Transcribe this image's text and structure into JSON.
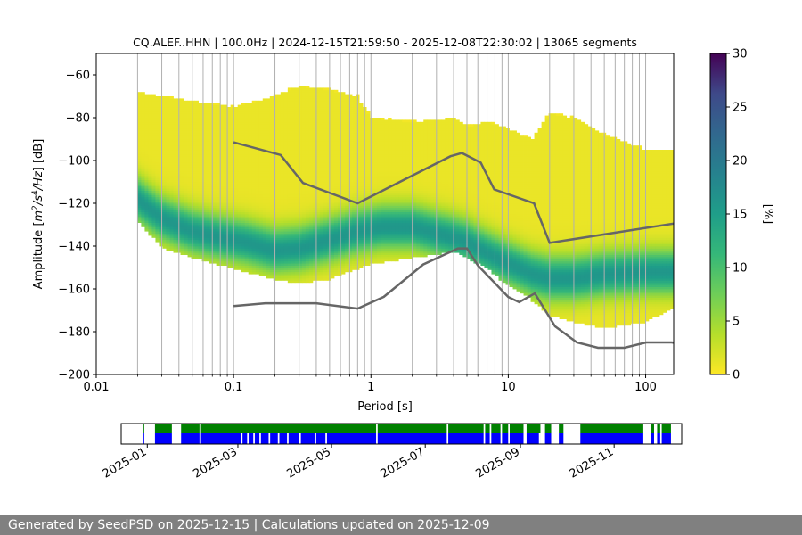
{
  "chart_data": [
    {
      "type": "heatmap",
      "title": "CQ.ALEF..HHN | 100.0Hz | 2024-12-15T21:59:50 - 2025-12-08T22:30:02 | 13065 segments",
      "xlabel": "Period [s]",
      "ylabel_parts": [
        "Amplitude [",
        "m",
        "2",
        "/s",
        "4",
        "/Hz",
        "] [dB]"
      ],
      "xscale": "log",
      "xlim": [
        0.01,
        160
      ],
      "ylim": [
        -200,
        -50
      ],
      "xticks": [
        0.01,
        0.1,
        1,
        10,
        100
      ],
      "xtick_labels": [
        "0.01",
        "0.1",
        "1",
        "10",
        "100"
      ],
      "yticks": [
        -200,
        -180,
        -160,
        -140,
        -120,
        -100,
        -80,
        -60
      ],
      "ytick_labels": [
        "−200",
        "−180",
        "−160",
        "−140",
        "−120",
        "−100",
        "−80",
        "−60"
      ],
      "grid": "vertical",
      "colorbar": {
        "label": "[%]",
        "range": [
          0,
          30
        ],
        "ticks": [
          0,
          5,
          10,
          15,
          20,
          25,
          30
        ],
        "colormap": "viridis-reversed"
      },
      "density_envelope": {
        "period": [
          0.02,
          0.03,
          0.05,
          0.1,
          0.2,
          0.3,
          0.5,
          0.8,
          1,
          2,
          4,
          5,
          7,
          10,
          15,
          20,
          30,
          50,
          100,
          160
        ],
        "upper_db": [
          -68,
          -70,
          -72,
          -75,
          -70,
          -65,
          -67,
          -70,
          -80,
          -82,
          -80,
          -84,
          -82,
          -85,
          -90,
          -78,
          -80,
          -88,
          -95,
          -95
        ],
        "lower_db": [
          -128,
          -140,
          -145,
          -150,
          -155,
          -157,
          -155,
          -150,
          -148,
          -145,
          -142,
          -145,
          -150,
          -158,
          -165,
          -172,
          -175,
          -178,
          -175,
          -168
        ]
      },
      "mode_curve": {
        "period": [
          0.02,
          0.03,
          0.05,
          0.08,
          0.12,
          0.2,
          0.3,
          0.5,
          0.8,
          1.2,
          2,
          3,
          4,
          5,
          6,
          8,
          10,
          15,
          20,
          30,
          50,
          100,
          160
        ],
        "db": [
          -118,
          -127,
          -133,
          -136,
          -138,
          -142,
          -141,
          -137,
          -133,
          -131,
          -131,
          -134,
          -136,
          -138,
          -141,
          -145,
          -148,
          -153,
          -155,
          -155,
          -153,
          -152,
          -152
        ]
      },
      "noise_models": {
        "NHNM": {
          "period": [
            0.1,
            0.22,
            0.32,
            0.8,
            3.8,
            4.6,
            6.3,
            7.9,
            15.4,
            20,
            354.8
          ],
          "db": [
            -91.5,
            -97.4,
            -110.5,
            -120,
            -98,
            -96.5,
            -101,
            -113.5,
            -120,
            -138.5,
            -126
          ]
        },
        "NLNM": {
          "period": [
            0.1,
            0.17,
            0.4,
            0.8,
            1.24,
            2.4,
            4.3,
            5,
            6,
            10,
            12,
            15.6,
            21.9,
            31.6,
            45,
            70,
            101,
            154,
            328
          ],
          "db": [
            -168,
            -166.7,
            -166.7,
            -169.2,
            -163.7,
            -148.6,
            -141.1,
            -141.1,
            -149,
            -163.8,
            -166.2,
            -162.1,
            -177.5,
            -185,
            -187.5,
            -187.5,
            -185,
            -185,
            -187.5
          ]
        }
      }
    },
    {
      "type": "bar",
      "xlabel": "",
      "tick_labels": [
        "2025-01",
        "2025-03",
        "2025-05",
        "2025-07",
        "2025-09",
        "2025-11"
      ],
      "tick_dates": [
        "2025-01-01",
        "2025-03-01",
        "2025-05-01",
        "2025-07-01",
        "2025-09-01",
        "2025-11-01"
      ],
      "xlim": [
        "2024-12-15",
        "2025-12-15"
      ],
      "colors": {
        "upper": "#008000",
        "lower": "#0000ff"
      },
      "gaps": [
        [
          "2024-12-15",
          "2024-12-29"
        ],
        [
          "2024-12-30",
          "2025-01-06"
        ],
        [
          "2025-01-17",
          "2025-01-23"
        ],
        [
          "2025-02-04",
          "2025-02-05"
        ],
        [
          "2025-05-30",
          "2025-05-31"
        ],
        [
          "2025-07-15",
          "2025-07-16"
        ],
        [
          "2025-08-08",
          "2025-08-09"
        ],
        [
          "2025-08-12",
          "2025-08-13"
        ],
        [
          "2025-08-19",
          "2025-08-20"
        ],
        [
          "2025-08-24",
          "2025-08-25"
        ],
        [
          "2025-09-03",
          "2025-09-05"
        ],
        [
          "2025-09-14",
          "2025-09-17"
        ],
        [
          "2025-09-21",
          "2025-09-26"
        ],
        [
          "2025-09-29",
          "2025-10-10"
        ],
        [
          "2025-11-20",
          "2025-11-25"
        ],
        [
          "2025-11-27",
          "2025-11-29"
        ],
        [
          "2025-12-01",
          "2025-12-02"
        ],
        [
          "2025-12-08",
          "2025-12-15"
        ]
      ],
      "lower_gaps": [
        [
          "2025-03-03",
          "2025-03-04"
        ],
        [
          "2025-03-07",
          "2025-03-08"
        ],
        [
          "2025-03-11",
          "2025-03-12"
        ],
        [
          "2025-03-15",
          "2025-03-16"
        ],
        [
          "2025-03-21",
          "2025-03-22"
        ],
        [
          "2025-03-27",
          "2025-03-28"
        ],
        [
          "2025-04-02",
          "2025-04-03"
        ],
        [
          "2025-04-10",
          "2025-04-11"
        ],
        [
          "2025-04-20",
          "2025-04-21"
        ],
        [
          "2025-04-27",
          "2025-04-28"
        ],
        [
          "2025-09-13",
          "2025-09-14"
        ],
        [
          "2025-09-21",
          "2025-09-23"
        ]
      ]
    }
  ],
  "footer": {
    "text": "Generated by SeedPSD on 2025-12-15 | Calculations updated on 2025-12-09"
  },
  "colors": {
    "grid": "#b0b0b0",
    "model_line": "#666666",
    "footer_bg": "#808080"
  }
}
